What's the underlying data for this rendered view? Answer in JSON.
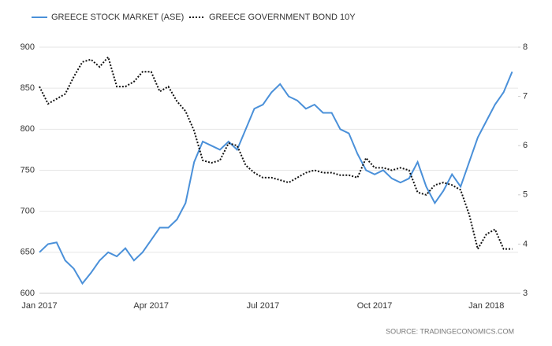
{
  "chart_data": {
    "type": "line",
    "series": [
      {
        "name": "GREECE STOCK MARKET (ASE)",
        "color": "#4a90d9",
        "axis": "y",
        "values": [
          650,
          660,
          662,
          640,
          630,
          612,
          625,
          640,
          650,
          645,
          655,
          640,
          650,
          665,
          680,
          680,
          690,
          710,
          760,
          785,
          780,
          775,
          785,
          775,
          800,
          825,
          830,
          845,
          855,
          840,
          835,
          825,
          830,
          820,
          820,
          800,
          795,
          770,
          750,
          745,
          750,
          740,
          735,
          740,
          760,
          730,
          710,
          725,
          745,
          730,
          760,
          790,
          810,
          830,
          845,
          870
        ]
      },
      {
        "name": "GREECE GOVERNMENT BOND 10Y",
        "color": "#111111",
        "axis": "y2",
        "values": [
          7.2,
          6.85,
          6.95,
          7.05,
          7.4,
          7.7,
          7.75,
          7.6,
          7.8,
          7.2,
          7.2,
          7.3,
          7.5,
          7.5,
          7.1,
          7.2,
          6.9,
          6.7,
          6.3,
          5.7,
          5.65,
          5.7,
          6.05,
          6.0,
          5.6,
          5.45,
          5.35,
          5.35,
          5.3,
          5.25,
          5.35,
          5.45,
          5.5,
          5.45,
          5.45,
          5.4,
          5.4,
          5.35,
          5.75,
          5.55,
          5.55,
          5.5,
          5.55,
          5.5,
          5.05,
          5.0,
          5.2,
          5.25,
          5.2,
          5.1,
          4.6,
          3.9,
          4.2,
          4.3,
          3.9,
          3.9
        ]
      }
    ],
    "categories": [
      "Jan 2017",
      null,
      null,
      null,
      null,
      null,
      null,
      null,
      null,
      null,
      null,
      null,
      null,
      "Apr 2017",
      null,
      null,
      null,
      null,
      null,
      null,
      null,
      null,
      null,
      null,
      null,
      null,
      "Jul 2017",
      null,
      null,
      null,
      null,
      null,
      null,
      null,
      null,
      null,
      null,
      null,
      null,
      "Oct 2017",
      null,
      null,
      null,
      null,
      null,
      null,
      null,
      null,
      null,
      null,
      null,
      null,
      "Jan 2018",
      null,
      null,
      null
    ],
    "ylim": [
      600,
      900
    ],
    "yticks": [
      600,
      650,
      700,
      750,
      800,
      850,
      900
    ],
    "y2lim": [
      3,
      8
    ],
    "y2ticks": [
      3,
      4,
      5,
      6,
      7,
      8
    ],
    "grid": true,
    "source": "SOURCE: TRADINGECONOMICS.COM"
  }
}
